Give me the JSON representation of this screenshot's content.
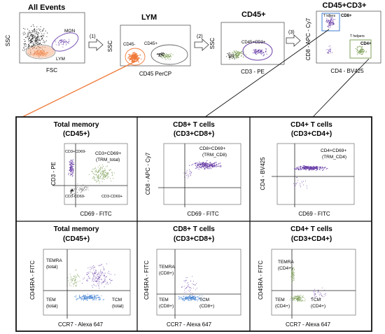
{
  "gating": {
    "panel_titles": [
      "All Events",
      "LYM",
      "CD45+",
      "CD45+CD3+"
    ],
    "steps": [
      "(1)",
      "(2)",
      "(3)"
    ],
    "all_events": {
      "ylabel": "SSC",
      "xlabel": "FSC",
      "gate_mon": "MON",
      "gate_lym": "LYM"
    },
    "lym": {
      "ylabel": "SSC",
      "xlabel": "CD45 PerCP",
      "gate_neg": "CD45-",
      "gate_pos": "CD45+"
    },
    "cd45": {
      "ylabel": "SSC",
      "xlabel": "CD3 - PE",
      "gate": "CD45+CD3+"
    },
    "cd3": {
      "ylabel": "CD8 - APC - Cy7",
      "xlabel": "CD4 - BV425",
      "gate_killers": "T killers",
      "gate_cd8": "CD8+",
      "gate_helpers": "T helpers",
      "gate_cd4": "CD4+"
    }
  },
  "grid": {
    "row1": [
      {
        "title": "Total memory",
        "subtitle": "(CD45+)",
        "ylabel": "CD3 - PE",
        "xlabel": "CD69 - FITC",
        "q_ul": "CD3+CD69-",
        "q_ur": "CD3+CD69+",
        "q_ur2": "(TRM_total)",
        "q_ll": "CD3-CD69-",
        "q_lr": "CD3-CD69+"
      },
      {
        "title": "CD8+ T cells",
        "subtitle": "(CD3+CD8+)",
        "ylabel": "CD8 - APC - Cy7",
        "xlabel": "CD69 - FITC",
        "q_ur": "CD8+CD69+",
        "q_ur2": "(TRM_CD8)"
      },
      {
        "title": "CD4+ T cells",
        "subtitle": "(CD3+CD4+)",
        "ylabel": "CD4 - BV425",
        "xlabel": "CD69 - FITC",
        "q_ur": "CD4+CD69+",
        "q_ur2": "(TRM_CD4)"
      }
    ],
    "row2": [
      {
        "title": "Total memory",
        "subtitle": "(CD45+)",
        "ylabel": "CD45RA - FITC",
        "xlabel": "CCR7 - Alexa 647",
        "temra": "TEMRA",
        "temra2": "(total)",
        "tem": "TEM",
        "tem2": "(total)",
        "tcm": "TCM",
        "tcm2": "(total)"
      },
      {
        "title": "CD8+ T cells",
        "subtitle": "(CD3+CD8+)",
        "ylabel": "CD45RA - FITC",
        "xlabel": "CCR7 - Alexa 647",
        "temra": "TEMRA",
        "temra2": "(CD8+)",
        "tem": "TEM",
        "tem2": "(CD8+)",
        "tcm": "TCM",
        "tcm2": "(CD8+)"
      },
      {
        "title": "CD4+ T cells",
        "subtitle": "(CD3+CD4+)",
        "ylabel": "CD45RA - FITC",
        "xlabel": "CCR7 - Alexa 647",
        "temra": "TEMRA",
        "temra2": "(CD4+)",
        "tem": "TEM",
        "tem2": "(CD4+)",
        "tcm": "TCM",
        "tcm2": "(CD4+)"
      }
    ]
  },
  "colors": {
    "events": "#111111",
    "lym": "#f07a3a",
    "lym_light": "#f6b088",
    "mon": "#7b55b5",
    "green": "#7fa05a",
    "purple": "#6a3fa8",
    "blue": "#3f7fd0",
    "gray": "#8a8a8a"
  }
}
